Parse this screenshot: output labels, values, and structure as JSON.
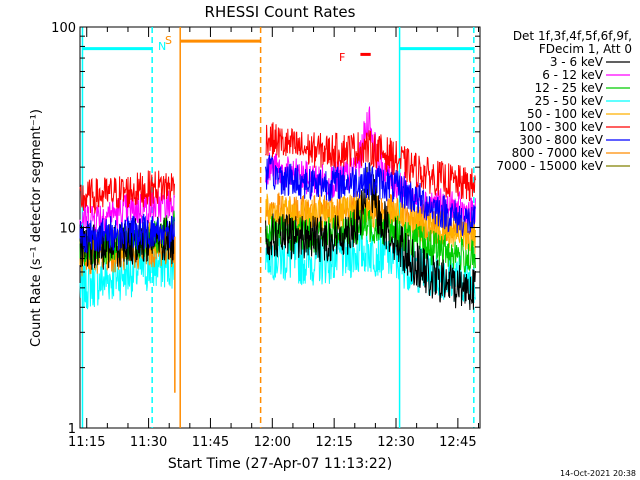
{
  "chart_data": {
    "type": "line",
    "title": "RHESSI Count Rates",
    "xlabel": "Start Time (27-Apr-07 11:13:22)",
    "ylabel": "Count Rate (s⁻¹ detector segment⁻¹)",
    "yscale": "log",
    "ylim": [
      1,
      100
    ],
    "xlim_minutes": [
      0,
      97
    ],
    "x_ticks": [
      "11:15",
      "11:30",
      "11:45",
      "12:00",
      "12:15",
      "12:30",
      "12:45"
    ],
    "y_ticks": [
      "1",
      "10",
      "100"
    ],
    "legend": {
      "header": [
        "Det 1f,3f,4f,5f,6f,9f,",
        "FDecim 1, Att 0"
      ],
      "position": "right"
    },
    "footer_date": "14-Oct-2021 20:38",
    "flags": {
      "S": "S",
      "N": "N",
      "F": "F"
    },
    "data_gaps_minutes": [
      [
        24,
        45
      ]
    ],
    "series": [
      {
        "name": "3 - 6 keV",
        "color": "#000000",
        "segments": [
          {
            "x": [
              0,
              5,
              10,
              15,
              20,
              23
            ],
            "y": [
              8,
              8,
              8.3,
              8.6,
              8.8,
              8.5
            ]
          },
          {
            "x": [
              45,
              55,
              60,
              65,
              68,
              70,
              72,
              75,
              80,
              85,
              90,
              96
            ],
            "y": [
              9,
              9,
              8.7,
              9.5,
              11,
              17,
              12,
              9.5,
              7,
              5.6,
              5.2,
              5
            ]
          }
        ]
      },
      {
        "name": "6 - 12 keV",
        "color": "#ff00ff",
        "segments": [
          {
            "x": [
              0,
              5,
              10,
              15,
              20,
              23
            ],
            "y": [
              11,
              11.5,
              12,
              12.5,
              13,
              13
            ]
          },
          {
            "x": [
              45,
              50,
              55,
              60,
              65,
              68,
              70,
              72,
              75,
              80,
              85,
              90,
              96
            ],
            "y": [
              20,
              18.5,
              17.5,
              17,
              18,
              22,
              35,
              22,
              18,
              14.5,
              13,
              12.5,
              11.5
            ]
          }
        ]
      },
      {
        "name": "12 - 25 keV",
        "color": "#00cc00",
        "segments": [
          {
            "x": [
              0,
              5,
              10,
              15,
              20,
              23
            ],
            "y": [
              7.8,
              8,
              8.2,
              8.6,
              9.2,
              10
            ]
          },
          {
            "x": [
              45,
              50,
              55,
              60,
              65,
              70,
              75,
              80,
              85,
              90,
              96
            ],
            "y": [
              9.5,
              9.2,
              9.1,
              9.3,
              9.8,
              10.3,
              9.8,
              8.8,
              8,
              7.5,
              7
            ]
          }
        ]
      },
      {
        "name": "25 - 50 keV",
        "color": "#00ffff",
        "segments": [
          {
            "x": [
              0,
              5,
              10,
              15,
              20,
              23
            ],
            "y": [
              5,
              5.4,
              5.8,
              6.2,
              6.5,
              6.6
            ]
          },
          {
            "x": [
              45,
              50,
              55,
              60,
              65,
              70,
              75,
              80,
              85,
              90,
              96
            ],
            "y": [
              7.5,
              7,
              6.8,
              6.9,
              7.3,
              7.8,
              7.2,
              6.4,
              6,
              5.7,
              5.5
            ]
          }
        ]
      },
      {
        "name": "50 - 100 keV",
        "color": "#ffb000",
        "segments": [
          {
            "x": [
              0,
              5,
              10,
              15,
              20,
              23
            ],
            "y": [
              7.8,
              8,
              8.2,
              8.5,
              9,
              9.5
            ]
          },
          {
            "x": [
              45,
              50,
              55,
              60,
              65,
              70,
              75,
              80,
              85,
              90,
              96
            ],
            "y": [
              12,
              11.5,
              11.2,
              11.3,
              11.8,
              12.3,
              11.6,
              10.8,
              10,
              9.5,
              9
            ]
          }
        ]
      },
      {
        "name": "100 - 300 keV",
        "color": "#ff0000",
        "segments": [
          {
            "x": [
              0,
              5,
              10,
              15,
              20,
              23
            ],
            "y": [
              14,
              14.5,
              15,
              15.5,
              16,
              16
            ]
          },
          {
            "x": [
              45,
              50,
              55,
              60,
              65,
              70,
              75,
              80,
              85,
              90,
              96
            ],
            "y": [
              28,
              26,
              24.5,
              24,
              24.5,
              25,
              23,
              20,
              18,
              17,
              16
            ]
          }
        ]
      },
      {
        "name": "300 - 800 keV",
        "color": "#0000ff",
        "segments": [
          {
            "x": [
              0,
              5,
              10,
              15,
              20,
              23
            ],
            "y": [
              9,
              9.2,
              9.4,
              9.5,
              9.6,
              9.6
            ]
          },
          {
            "x": [
              45,
              50,
              55,
              60,
              65,
              70,
              75,
              80,
              85,
              90,
              96
            ],
            "y": [
              19,
              17.5,
              16.8,
              16.6,
              16.9,
              17.3,
              16.4,
              14.5,
              12.8,
              11.5,
              10.5
            ]
          }
        ]
      },
      {
        "name": "800 - 7000 keV",
        "color": "#ff8c00",
        "segments": [
          {
            "x": [
              0,
              5,
              10,
              15,
              20,
              23
            ],
            "y": [
              7,
              7.2,
              7.4,
              7.6,
              7.8,
              7.8
            ]
          },
          {
            "x": [
              45,
              50,
              55,
              60,
              65,
              70,
              75,
              80,
              85,
              90,
              96
            ],
            "y": [
              12.5,
              12,
              11.8,
              11.9,
              12.2,
              12.6,
              12,
              11.2,
              10.4,
              9.8,
              9.3
            ]
          }
        ]
      },
      {
        "name": "7000 - 15000 keV",
        "color": "#808000",
        "segments": []
      }
    ],
    "vlines": [
      {
        "x": 0.6,
        "color": "#00ffff",
        "style": "solid"
      },
      {
        "x": 17.5,
        "color": "#00ffff",
        "style": "dashed"
      },
      {
        "x": 24.3,
        "color": "#ff8c00",
        "style": "solid"
      },
      {
        "x": 43.8,
        "color": "#ff8c00",
        "style": "dashed"
      },
      {
        "x": 77.5,
        "color": "#00ffff",
        "style": "solid"
      },
      {
        "x": 95.5,
        "color": "#00ffff",
        "style": "dashed"
      }
    ],
    "bars": [
      {
        "label": "SAA",
        "color": "#00ffff",
        "y": 78,
        "ranges": [
          [
            0.6,
            17.5
          ],
          [
            77.5,
            95.5
          ]
        ]
      },
      {
        "label": "Night",
        "color": "#ff8c00",
        "y": 85,
        "ranges": [
          [
            24.3,
            43.8
          ]
        ]
      },
      {
        "label": "Flare",
        "color": "#ff0000",
        "y": 73,
        "ranges": [
          [
            68,
            70.5
          ]
        ]
      }
    ],
    "dropout": {
      "x": 23,
      "color": "#ff8c00",
      "y_from": 9,
      "y_to": 1.5
    }
  }
}
